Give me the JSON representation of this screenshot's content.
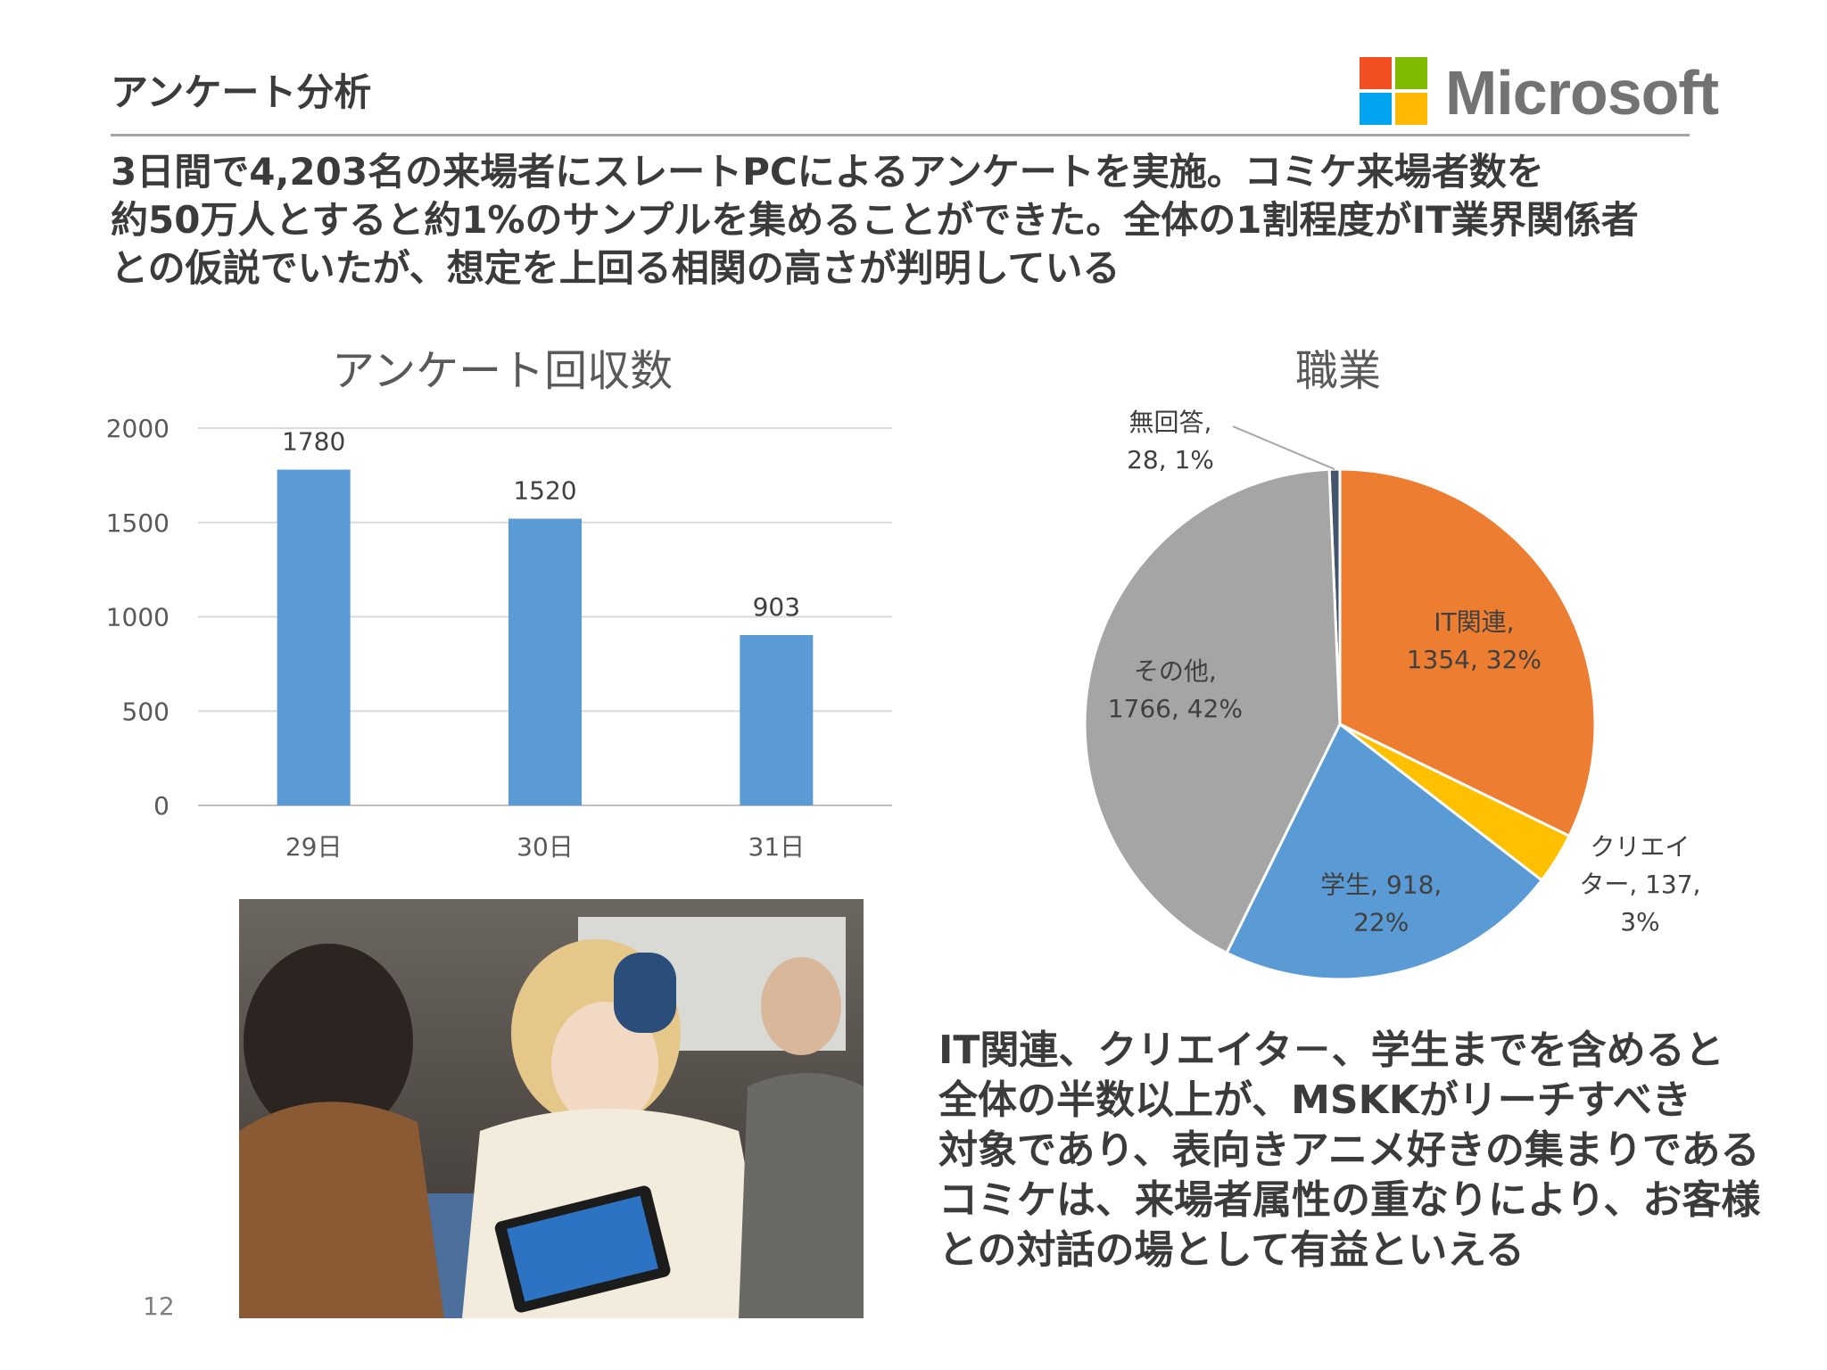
{
  "slide": {
    "title": "アンケート分析",
    "page_number": "12",
    "logo_text": "Microsoft",
    "summary_lines": [
      "3日間で4,203名の来場者にスレートPCによるアンケートを実施。コミケ来場者数を",
      "約50万人とすると約1%のサンプルを集めることができた。全体の1割程度がIT業界関係者",
      "との仮説でいたが、想定を上回る相関の高さが判明している"
    ],
    "conclusion_lines": [
      "IT関連、クリエイタ－、学生までを含めると",
      "全体の半数以上が、MSKKがリーチすべき",
      "対象であり、表向きアニメ好きの集まりである",
      "コミケは、来場者属性の重なりにより、お客様",
      "との対話の場として有益といえる"
    ]
  },
  "colors": {
    "bar": "#5b9bd5",
    "logo_red": "#f25022",
    "logo_green": "#7fba00",
    "logo_blue": "#00a4ef",
    "logo_yellow": "#ffb900"
  },
  "chart_data": [
    {
      "type": "bar",
      "title": "アンケート回収数",
      "categories": [
        "29日",
        "30日",
        "31日"
      ],
      "values": [
        1780,
        1520,
        903
      ],
      "data_labels": [
        "1780",
        "1520",
        "903"
      ],
      "yticks": [
        "0",
        "500",
        "1000",
        "1500",
        "2000"
      ],
      "ylim": [
        0,
        2000
      ],
      "grid": true
    },
    {
      "type": "pie",
      "title": "職業",
      "slices": [
        {
          "label": "無回答",
          "value": 28,
          "percent": "1%",
          "color": "#44546a",
          "label_lines": [
            "無回答,",
            "28, 1%"
          ]
        },
        {
          "label": "IT関連",
          "value": 1354,
          "percent": "32%",
          "color": "#ed7d31",
          "label_lines": [
            "IT関連,",
            "1354, 32%"
          ]
        },
        {
          "label": "クリエイター",
          "value": 137,
          "percent": "3%",
          "color": "#ffc000",
          "label_lines": [
            "クリエイ",
            "ター, 137,",
            "3%"
          ]
        },
        {
          "label": "学生",
          "value": 918,
          "percent": "22%",
          "color": "#5b9bd5",
          "label_lines": [
            "学生, 918,",
            "22%"
          ]
        },
        {
          "label": "その他",
          "value": 1766,
          "percent": "42%",
          "color": "#a5a5a5",
          "label_lines": [
            "その他,",
            "1766, 42%"
          ]
        }
      ]
    }
  ]
}
